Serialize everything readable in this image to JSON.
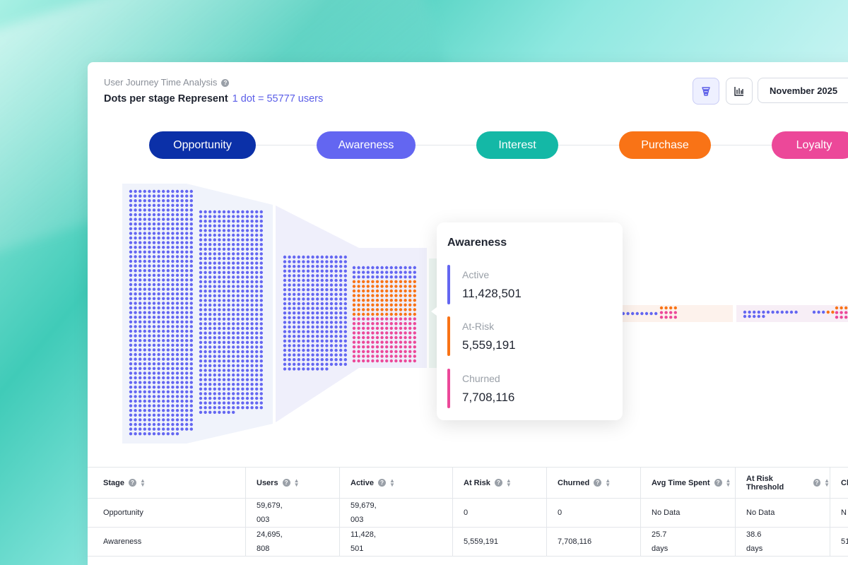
{
  "header": {
    "title": "User Journey Time Analysis",
    "subtitle_label": "Dots per stage Represent",
    "subtitle_value": "1 dot = 55777 users",
    "month": "November 2025"
  },
  "stages": [
    {
      "label": "Opportunity",
      "color": "#0b30a8"
    },
    {
      "label": "Awareness",
      "color": "#6366f1"
    },
    {
      "label": "Interest",
      "color": "#14b8a6"
    },
    {
      "label": "Purchase",
      "color": "#f97316"
    },
    {
      "label": "Loyalty",
      "color": "#ec4899"
    }
  ],
  "colors": {
    "active": "#6366f1",
    "at_risk": "#f97316",
    "churned": "#ec4899"
  },
  "tooltip": {
    "title": "Awareness",
    "rows": [
      {
        "label": "Active",
        "value": "11,428,501"
      },
      {
        "label": "At-Risk",
        "value": "5,559,191"
      },
      {
        "label": "Churned",
        "value": "7,708,116"
      }
    ]
  },
  "table": {
    "headers": [
      "Stage",
      "Users",
      "Active",
      "At Risk",
      "Churned",
      "Avg Time Spent",
      "At Risk Threshold",
      "Cl"
    ],
    "rows": [
      [
        "Opportunity",
        "59,679,\n003",
        "59,679,\n003",
        "0",
        "0",
        "No Data",
        "No Data",
        "N"
      ],
      [
        "Awareness",
        "24,695,\n808",
        "11,428,\n501",
        "5,559,191",
        "7,708,116",
        "25.7\ndays",
        "38.6\ndays",
        "51."
      ]
    ]
  }
}
